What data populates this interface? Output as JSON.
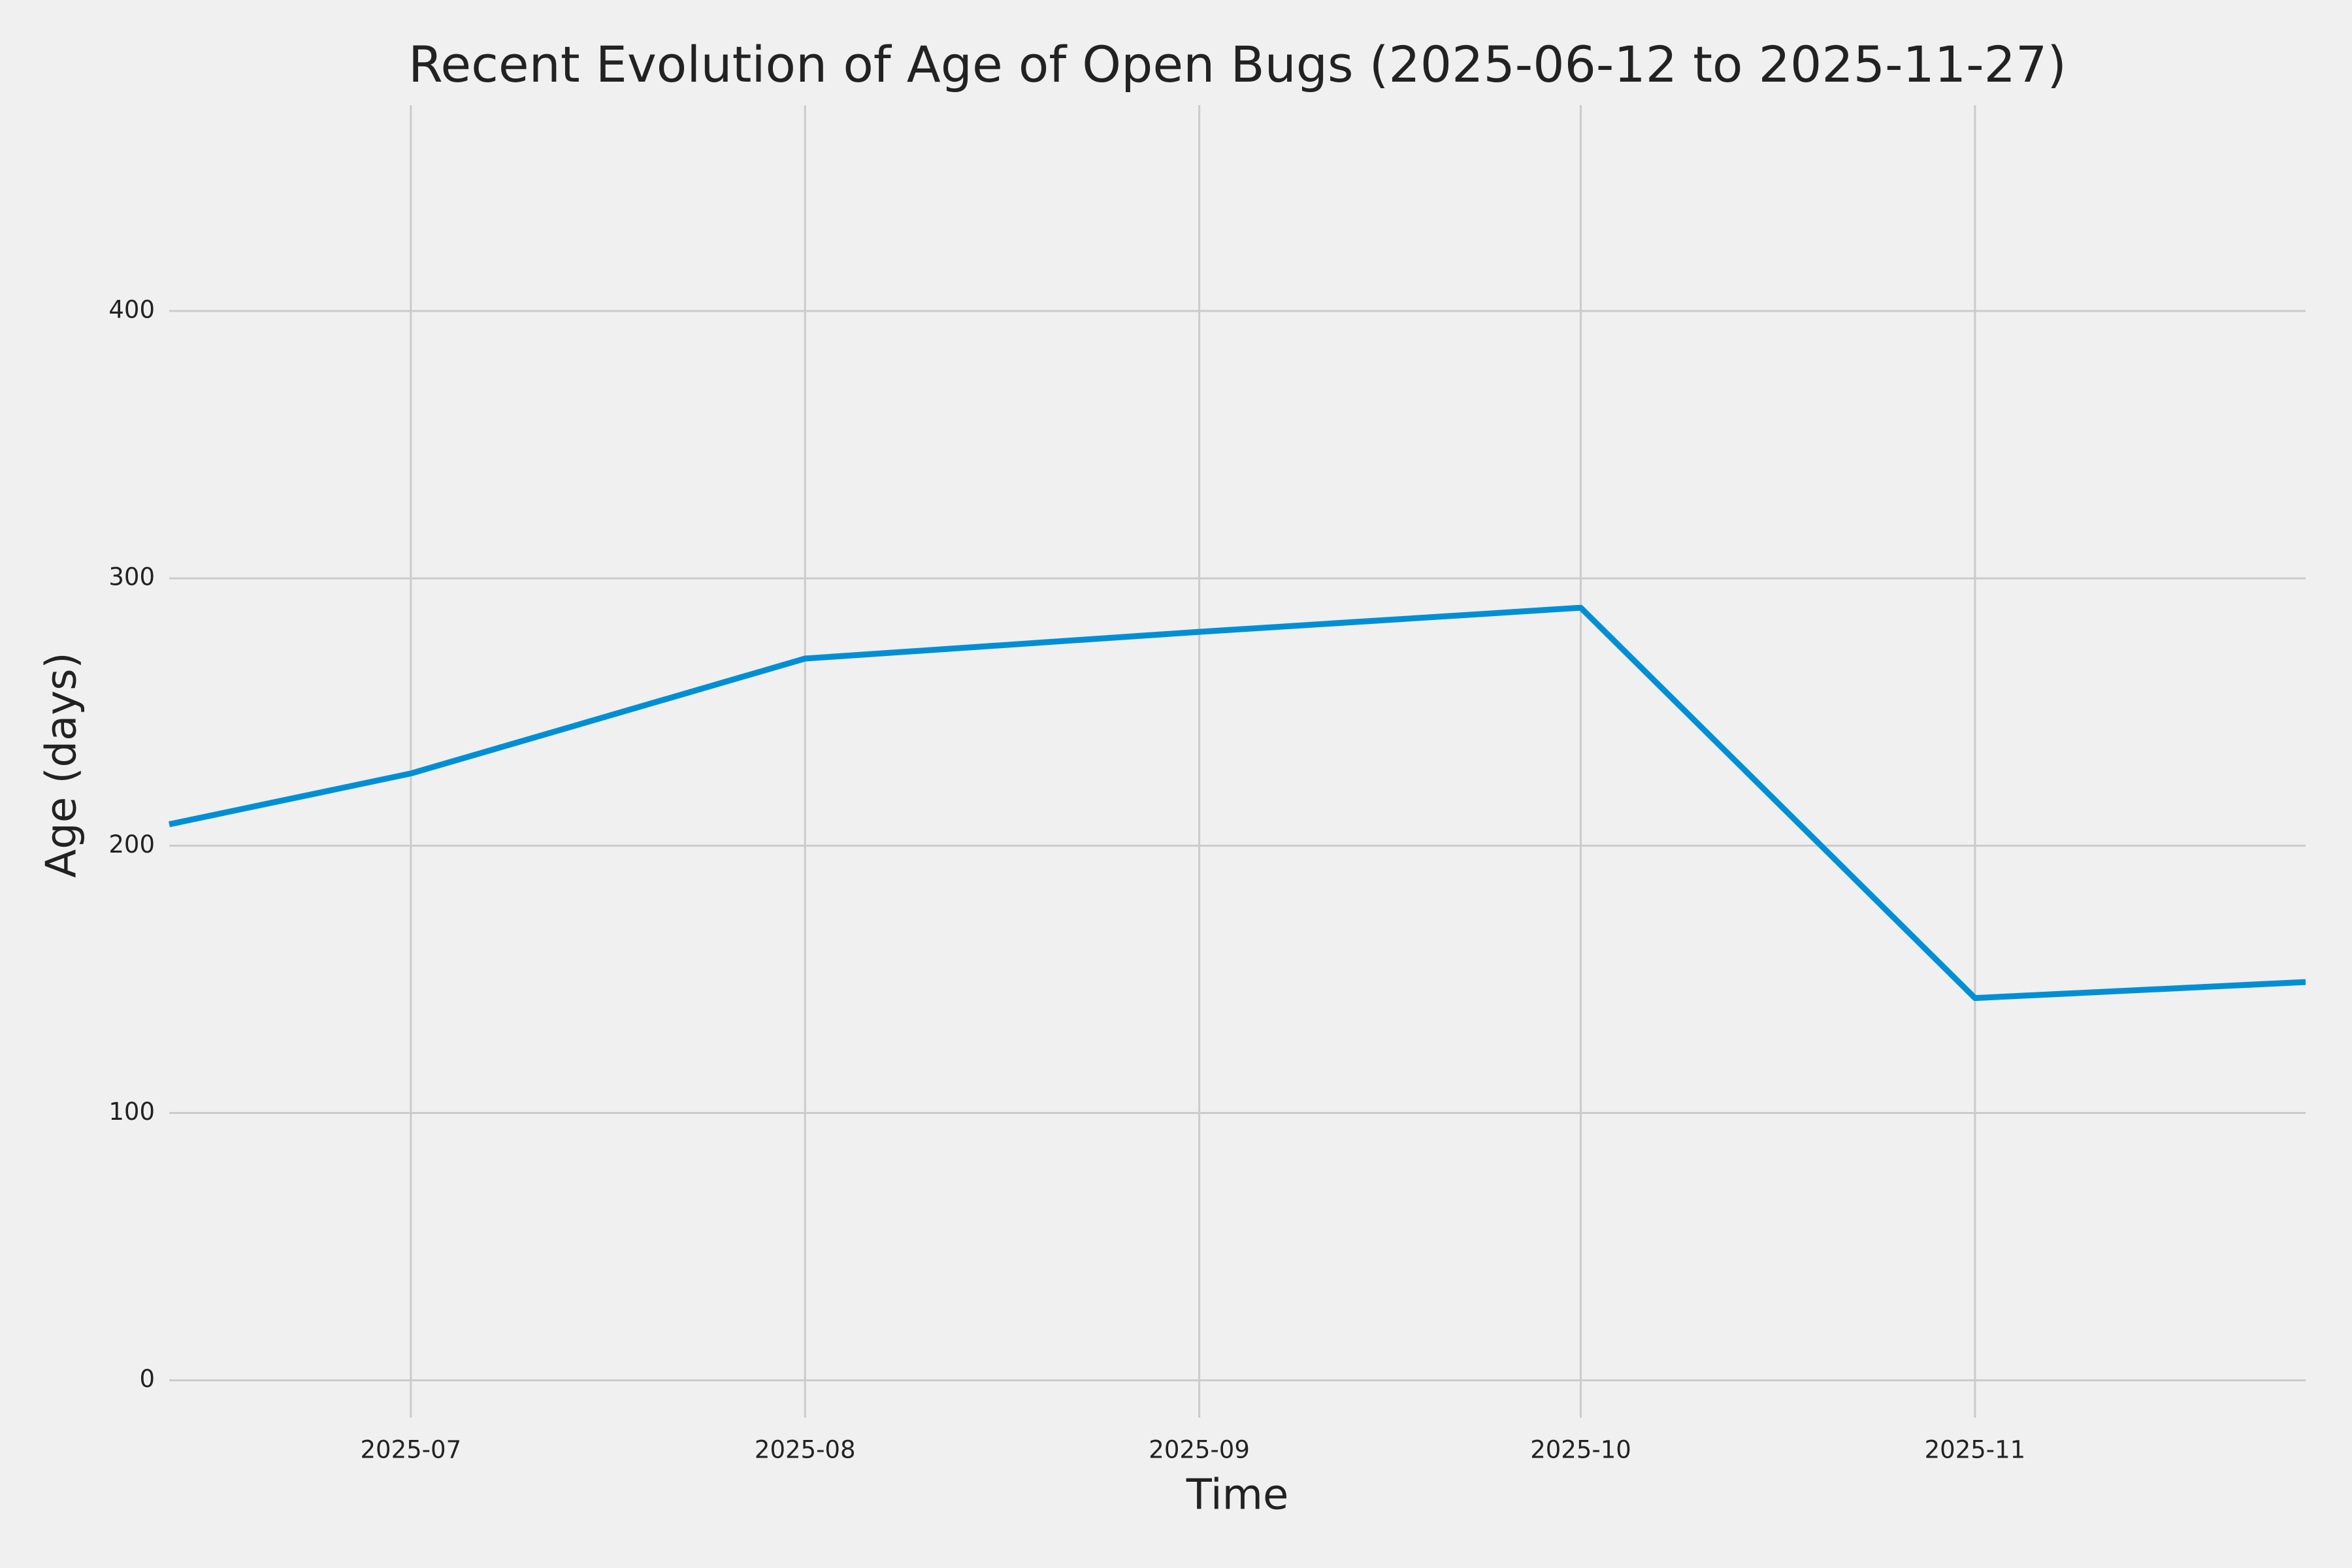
{
  "chart_data": {
    "type": "line",
    "title": "Recent Evolution of Age of Open Bugs (2025-06-12 to 2025-11-27)",
    "x_label": "Time",
    "y_label": "Age (days)",
    "x": [
      "2025-06-12",
      "2025-07-01",
      "2025-08-01",
      "2025-09-01",
      "2025-10-01",
      "2025-11-01",
      "2025-11-27"
    ],
    "values": [
      208,
      227,
      270,
      280,
      289,
      143,
      149
    ],
    "color": "#008fd5",
    "xlim": [
      "2025-06-12",
      "2025-11-27"
    ],
    "xticks": [
      "2025-07",
      "2025-08",
      "2025-09",
      "2025-10",
      "2025-11"
    ],
    "ylim": [
      -14,
      477
    ],
    "yticks": [
      0,
      100,
      200,
      300,
      400
    ],
    "grid": true
  }
}
